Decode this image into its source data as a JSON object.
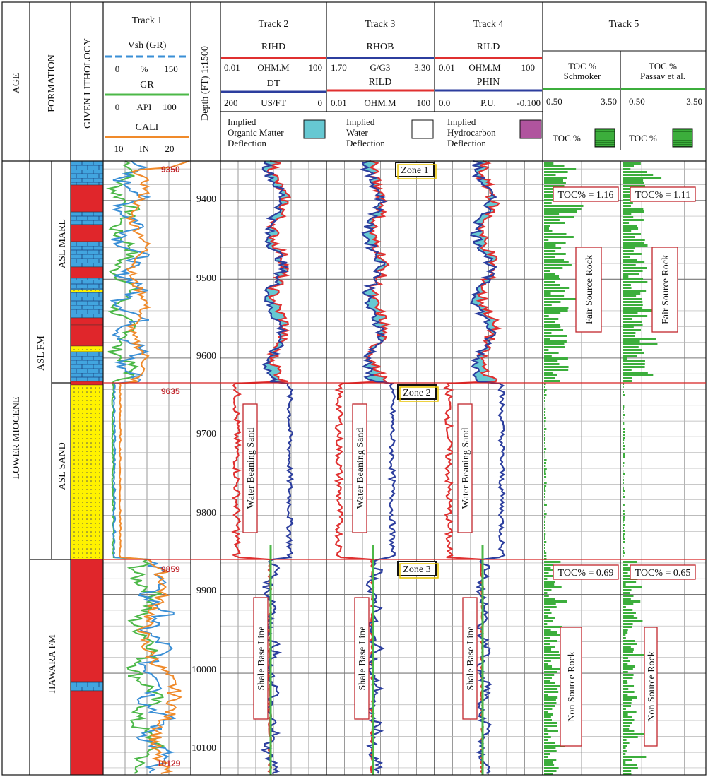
{
  "header": {
    "age": "AGE",
    "formation": "FORMATION",
    "lithology": "GIVEN LITHOLOGY",
    "depth": "Depth (FT) 1:1500"
  },
  "track1": {
    "title": "Track 1",
    "curves": [
      {
        "name": "Vsh (GR)",
        "min": "0",
        "unit": "%",
        "max": "150",
        "color": "#3a8fd6",
        "dashed": true
      },
      {
        "name": "GR",
        "min": "0",
        "unit": "API",
        "max": "100",
        "color": "#4cb848"
      },
      {
        "name": "CALI",
        "min": "10",
        "unit": "IN",
        "max": "20",
        "color": "#f08a2a"
      }
    ]
  },
  "track2": {
    "title": "Track 2",
    "c1": {
      "name": "RIHD",
      "min": "0.01",
      "unit": "OHM.M",
      "max": "100",
      "color": "#e03030"
    },
    "c2": {
      "name": "DT",
      "min": "200",
      "unit": "US/FT",
      "max": "0",
      "color": "#2c3e9e"
    }
  },
  "track3": {
    "title": "Track 3",
    "c1": {
      "name": "RHOB",
      "min": "1.70",
      "unit": "G/G3",
      "max": "3.30",
      "color": "#2c3e9e"
    },
    "c2": {
      "name": "RILD",
      "min": "0.01",
      "unit": "OHM.M",
      "max": "100",
      "color": "#e03030"
    }
  },
  "track4": {
    "title": "Track 4",
    "c1": {
      "name": "RILD",
      "min": "0.01",
      "unit": "OHM.M",
      "max": "100",
      "color": "#e03030"
    },
    "c2": {
      "name": "PHIN",
      "min": "0.0",
      "unit": "P.U.",
      "max": "-0.100",
      "color": "#2c3e9e"
    }
  },
  "legend": {
    "organic": {
      "label1": "Implied",
      "label2": "Organic Matter",
      "label3": "Deflection",
      "color": "#66c8d2"
    },
    "water": {
      "label1": "Implied",
      "label2": "Water",
      "label3": "Deflection",
      "color": "#ffffff"
    },
    "hydro": {
      "label1": "Implied",
      "label2": "Hydrocarbon",
      "label3": "Deflection",
      "color": "#b0549e"
    }
  },
  "track5": {
    "title": "Track 5",
    "a": {
      "title": "TOC %",
      "sub": "Schmoker",
      "min": "0.50",
      "max": "3.50",
      "legend": "TOC %"
    },
    "b": {
      "title": "TOC %",
      "sub": "Passav et al.",
      "min": "0.50",
      "max": "3.50",
      "legend": "TOC %"
    }
  },
  "strat": {
    "age": "LOWER MIOCENE",
    "fm1": "ASL FM",
    "fm2": "HAWARA FM",
    "mem1": "ASL MARL",
    "mem2": "ASL SAND"
  },
  "depth_labels": [
    "9400",
    "9500",
    "9600",
    "9700",
    "9800",
    "9900",
    "10000",
    "10100"
  ],
  "markers": {
    "top": "9350",
    "z2": "9635",
    "z3": "9859",
    "bottom": "10129"
  },
  "zones": [
    "Zone 1",
    "Zone 2",
    "Zone 3"
  ],
  "annotations": {
    "water_sand": "Water Beaning Sand",
    "shale": "Shale Base Line",
    "fair": "Fair Source Rock",
    "non": "Non Source Rock",
    "toc_a1": "TOC% = 1.16",
    "toc_b1": "TOC% = 1.11",
    "toc_a2": "TOC% = 0.69",
    "toc_b2": "TOC% = 0.65"
  },
  "chart_data": {
    "type": "line",
    "title": "",
    "ylabel": "Depth (FT) 1:1500",
    "depth_range": [
      9350,
      10129
    ],
    "zone_boundaries_ft": [
      9635,
      9859
    ],
    "zones": [
      {
        "name": "Zone 1",
        "top": 9350,
        "base": 9635,
        "lithology": "ASL MARL",
        "toc_schmoker": 1.16,
        "toc_passav": 1.11,
        "interpretation": "Fair Source Rock"
      },
      {
        "name": "Zone 2",
        "top": 9635,
        "base": 9859,
        "lithology": "ASL SAND",
        "interpretation": "Water Beaning Sand"
      },
      {
        "name": "Zone 3",
        "top": 9859,
        "base": 10129,
        "lithology": "HAWARA FM",
        "toc_schmoker": 0.69,
        "toc_passav": 0.65,
        "interpretation": "Non Source Rock"
      }
    ]
  }
}
